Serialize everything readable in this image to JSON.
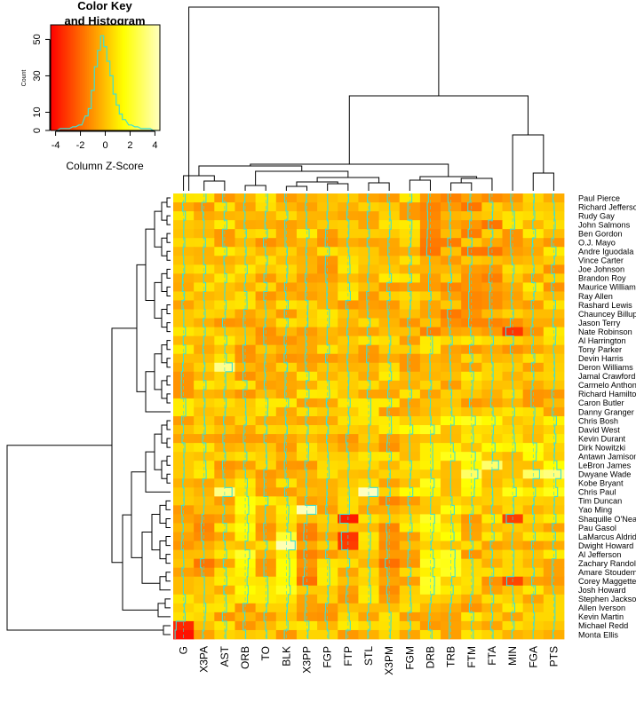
{
  "chart_data": {
    "type": "heatmap",
    "color_key": {
      "title_line1": "Color Key",
      "title_line2": "and Histogram",
      "xlabel": "Column Z-Score",
      "ylabel": "Count",
      "x_ticks": [
        "-4",
        "-2",
        "0",
        "2",
        "4"
      ],
      "y_ticks": [
        "0",
        "10",
        "30",
        "50"
      ],
      "x_range": [
        -4.4,
        4.4
      ],
      "y_range": [
        0,
        58
      ],
      "palette": [
        "#ff0000",
        "#ff8000",
        "#ffff00",
        "#ffffc0"
      ],
      "trace_color": "#40e0d0",
      "histogram": {
        "bin_centers": [
          -4.0,
          -3.5,
          -3.0,
          -2.5,
          -2.0,
          -1.5,
          -1.25,
          -1.0,
          -0.75,
          -0.5,
          -0.25,
          0.0,
          0.25,
          0.5,
          0.75,
          1.0,
          1.25,
          1.5,
          2.0,
          2.5,
          3.0,
          3.5,
          4.0
        ],
        "counts": [
          0,
          1,
          1,
          2,
          3,
          8,
          12,
          22,
          35,
          44,
          52,
          46,
          38,
          30,
          20,
          14,
          9,
          6,
          3,
          2,
          1,
          1,
          0
        ]
      }
    },
    "columns": [
      "G",
      "X3PA",
      "AST",
      "ORB",
      "TO",
      "BLK",
      "X3PP",
      "FGP",
      "FTP",
      "STL",
      "X3PM",
      "FGM",
      "DRB",
      "TRB",
      "FTM",
      "FTA",
      "MIN",
      "FGA",
      "PTS"
    ],
    "rows": [
      "Paul Pierce",
      "Richard Jefferson",
      "Rudy Gay",
      "John Salmons",
      "Ben Gordon",
      "O.J. Mayo",
      "Andre Iguodala",
      "Vince Carter",
      "Joe Johnson",
      "Brandon Roy",
      "Maurice Williams",
      "Ray Allen",
      "Rashard Lewis",
      "Chauncey Billups",
      "Jason Terry",
      "Nate Robinson",
      "Al Harrington",
      "Tony Parker",
      "Devin Harris",
      "Deron Williams",
      "Jamal Crawford",
      "Carmelo Anthony",
      "Richard Hamilton",
      "Caron Butler",
      "Danny Granger",
      "Chris Bosh",
      "David West",
      "Kevin Durant",
      "Dirk Nowitzki",
      "Antawn Jamison",
      "LeBron James",
      "Dwyane Wade",
      "Kobe Bryant",
      "Chris Paul",
      "Tim Duncan",
      "Yao Ming",
      "Shaquille O'Neal",
      "Pau Gasol",
      "LaMarcus Aldridge",
      "Dwight Howard",
      "Al Jefferson",
      "Zachary Randolph",
      "Amare Stoudemire",
      "Corey Maggette",
      "Josh Howard",
      "Stephen Jackson",
      "Allen Iverson",
      "Kevin Martin",
      "Michael Redd",
      "Monta Ellis"
    ],
    "highlights": [
      {
        "row": "Monta Ellis",
        "column": "G",
        "z": -4.0
      },
      {
        "row": "Michael Redd",
        "column": "G",
        "z": -3.5
      },
      {
        "row": "Nate Robinson",
        "column": "MIN",
        "z": -3.2
      },
      {
        "row": "Corey Maggette",
        "column": "MIN",
        "z": -2.8
      },
      {
        "row": "Shaquille O'Neal",
        "column": "MIN",
        "z": -3.0
      },
      {
        "row": "Shaquille O'Neal",
        "column": "FTP",
        "z": -3.8
      },
      {
        "row": "LaMarcus Aldridge",
        "column": "FTP",
        "z": -3.2
      },
      {
        "row": "Dwight Howard",
        "column": "FTP",
        "z": -3.0
      },
      {
        "row": "Yao Ming",
        "column": "X3PP",
        "z": 4.3
      },
      {
        "row": "Dwight Howard",
        "column": "BLK",
        "z": 4.2
      },
      {
        "row": "Chris Paul",
        "column": "STL",
        "z": 4.4
      },
      {
        "row": "Chris Paul",
        "column": "AST",
        "z": 3.5
      },
      {
        "row": "Deron Williams",
        "column": "AST",
        "z": 3.6
      },
      {
        "row": "Dwyane Wade",
        "column": "PTS",
        "z": 3.4
      },
      {
        "row": "Dwyane Wade",
        "column": "FGA",
        "z": 3.0
      },
      {
        "row": "LeBron James",
        "column": "FTA",
        "z": 3.1
      },
      {
        "row": "Dwyane Wade",
        "column": "FTM",
        "z": 3.0
      }
    ]
  }
}
